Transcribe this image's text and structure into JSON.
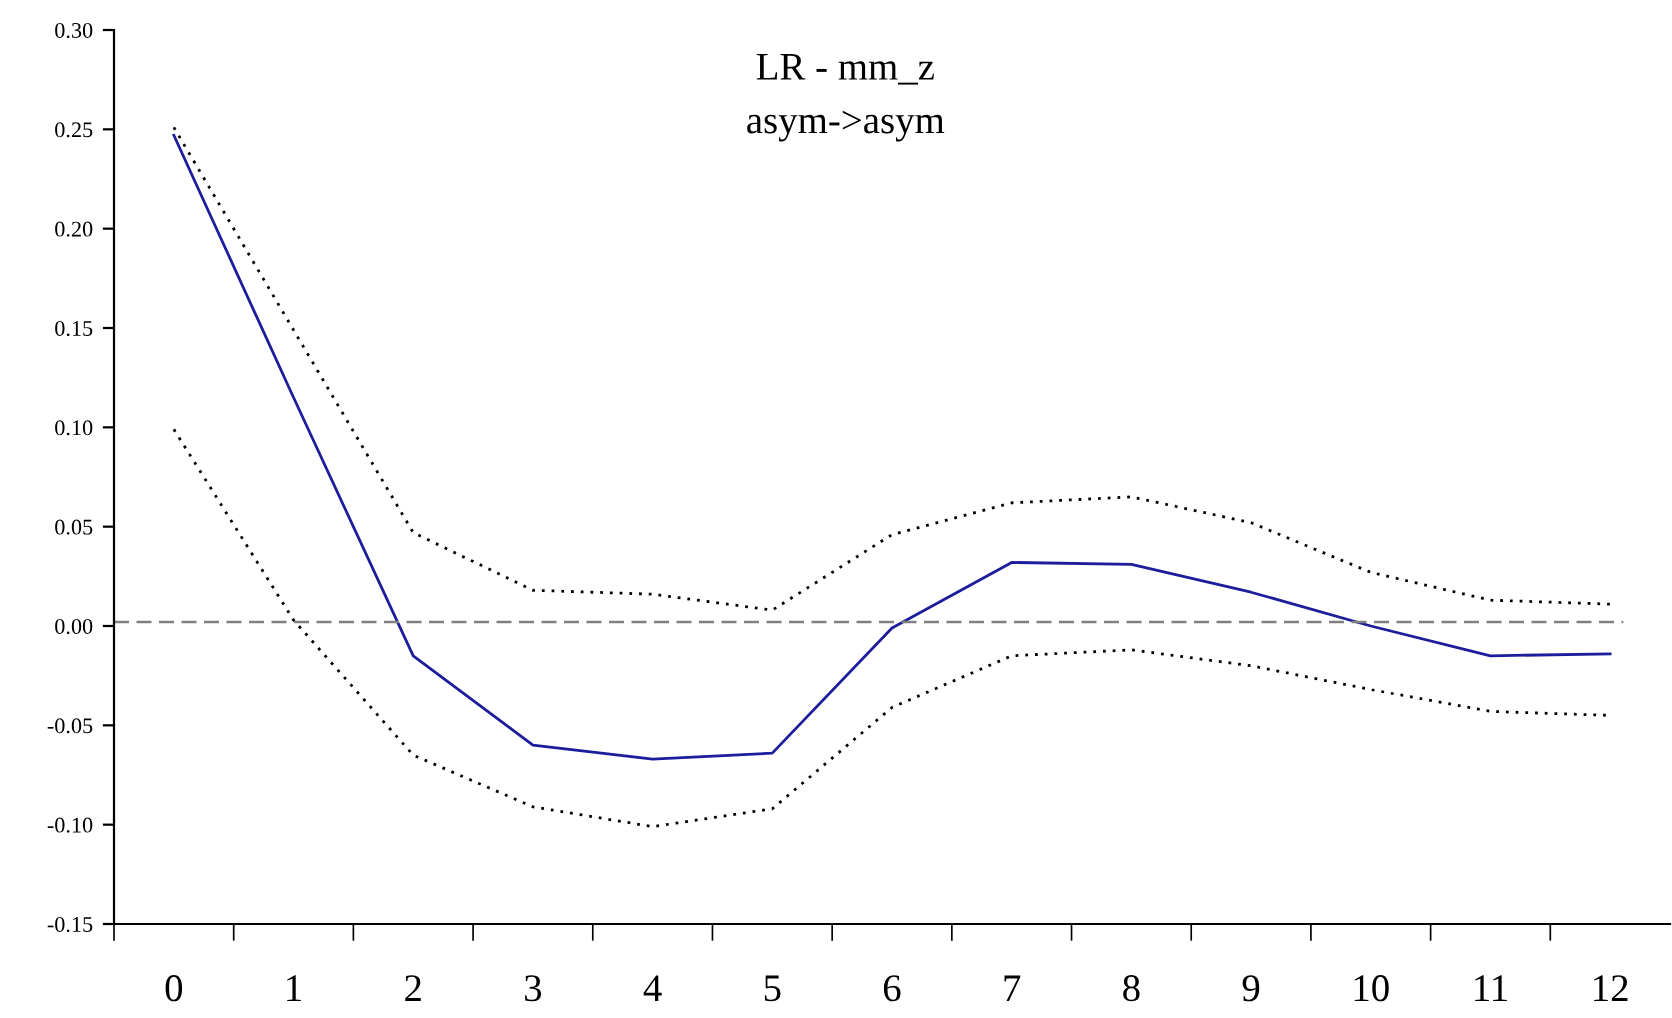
{
  "chart_data": {
    "type": "line",
    "title": "LR - mm_z",
    "subtitle": "asym->asym",
    "categories": [
      "0",
      "1",
      "2",
      "3",
      "4",
      "5",
      "6",
      "7",
      "8",
      "9",
      "10",
      "11",
      "12"
    ],
    "series": [
      {
        "color": "#1c1c9c",
        "line_style": "solid",
        "values": [
          0.247,
          0.115,
          -0.015,
          -0.06,
          -0.067,
          -0.064,
          -0.001,
          0.032,
          0.031,
          0.017,
          0.0,
          -0.015,
          -0.014
        ]
      },
      {
        "color": "#000000",
        "line_style": "dotted",
        "values": [
          0.251,
          0.149,
          0.047,
          0.018,
          0.016,
          0.008,
          0.046,
          0.062,
          0.065,
          0.052,
          0.027,
          0.013,
          0.011
        ]
      },
      {
        "color": "#000000",
        "line_style": "dotted",
        "values": [
          0.099,
          0.003,
          -0.065,
          -0.091,
          -0.101,
          -0.092,
          -0.041,
          -0.015,
          -0.012,
          -0.02,
          -0.032,
          -0.043,
          -0.045
        ]
      }
    ],
    "ylim": [
      -0.15,
      0.3
    ],
    "yticks": [
      {
        "value": -0.15,
        "label": "-0.15"
      },
      {
        "value": -0.1,
        "label": "-0.10"
      },
      {
        "value": -0.05,
        "label": "-0.05"
      },
      {
        "value": 0.0,
        "label": "0.00"
      },
      {
        "value": 0.05,
        "label": "0.05"
      },
      {
        "value": 0.1,
        "label": "0.10"
      },
      {
        "value": 0.15,
        "label": "0.15"
      },
      {
        "value": 0.2,
        "label": "0.20"
      },
      {
        "value": 0.25,
        "label": "0.25"
      },
      {
        "value": 0.3,
        "label": "0.30"
      }
    ],
    "ref_lines": [
      {
        "axis": "y",
        "value": 0.002,
        "label": null,
        "color": "#808080",
        "line_style": "dashed"
      }
    ],
    "grid": false,
    "legend": false,
    "marker": "none"
  }
}
